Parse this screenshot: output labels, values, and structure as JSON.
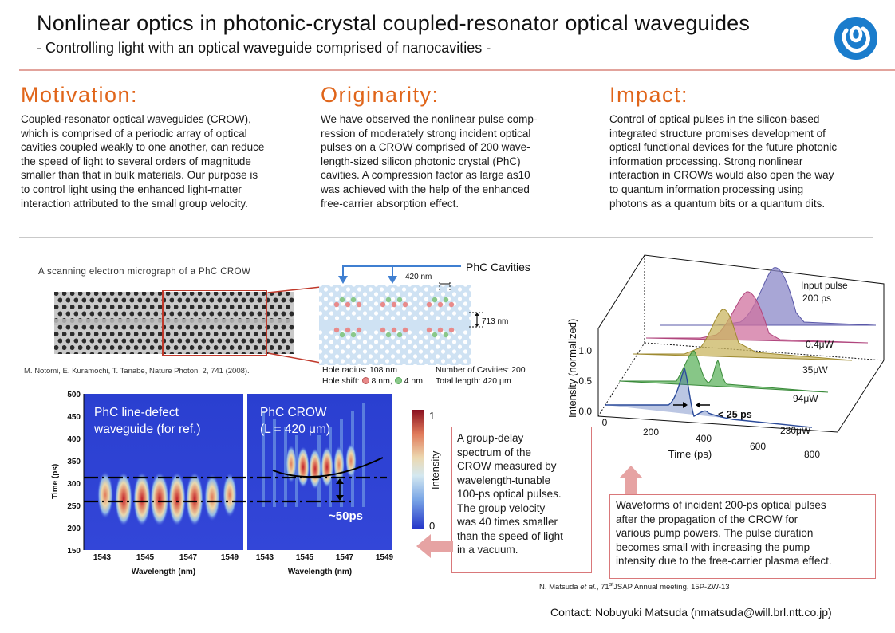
{
  "header": {
    "title": "Nonlinear optics in photonic-crystal coupled-resonator optical waveguides",
    "subtitle": "- Controlling light with an optical waveguide comprised of nanocavities -"
  },
  "motivation": {
    "heading": "Motivation:",
    "lines": [
      "Coupled-resonator optical waveguides (CROW),",
      "which is comprised of a periodic array of optical",
      "cavities coupled weakly to one another, can reduce",
      "the speed of light to several orders of magnitude",
      "smaller than that in bulk materials. Our purpose is",
      "to control light using the enhanced light-matter",
      "interaction attributed to the small group velocity."
    ]
  },
  "originality": {
    "heading": "Originarity:",
    "lines": [
      "We have observed the nonlinear pulse comp-",
      "ression of moderately strong incident optical",
      "pulses on a CROW comprised of 200 wave-",
      "length-sized silicon photonic crystal (PhC)",
      "cavities. A compression factor as large as10",
      "was achieved with the help of the enhanced",
      "free-carrier absorption effect."
    ]
  },
  "impact": {
    "heading": "Impact:",
    "lines": [
      "Control of optical pulses in the silicon-based",
      "integrated structure promises development of",
      "optical functional devices for the future photonic",
      "information processing. Strong nonlinear",
      "interaction in CROWs would also open the way",
      "to quantum information processing using",
      "photons as a quantum bits or a quantum dits."
    ]
  },
  "sem": {
    "caption": "A scanning electron micrograph of a PhC CROW",
    "reference": "M. Notomi, E. Kuramochi, T. Tanabe, Nature Photon. 2, 741 (2008)."
  },
  "schematic": {
    "cavities_label": "PhC Cavities",
    "period_label": "420 nm",
    "spacing_label": "713 nm",
    "hole_radius": "Hole radius:  108 nm",
    "hole_shift_prefix": "Hole shift:",
    "hole_shift_red": "8 nm,",
    "hole_shift_green": "4 nm",
    "num_cavities": "Number of Cavities:  200",
    "total_length": "Total length:  420 μm"
  },
  "spectra": {
    "ylabel": "Time (ps)",
    "xlabel": "Wavelength (nm)",
    "yticks": [
      "500",
      "450",
      "400",
      "350",
      "300",
      "250",
      "200",
      "150"
    ],
    "xticks": [
      "1543",
      "1545",
      "1547",
      "1549"
    ],
    "panel1_title_line1": "PhC line-defect",
    "panel1_title_line2": "waveguide (for ref.)",
    "panel2_title_line1": "PhC CROW",
    "panel2_title_line2": "(L = 420 μm)",
    "delay_label": "~50ps",
    "colorbar_label": "Intensity",
    "colorbar_max": "1",
    "colorbar_min": "0"
  },
  "group_delay_box": {
    "lines": [
      "A group-delay",
      "spectrum of the",
      "CROW measured by",
      "wavelength-tunable",
      "100-ps optical pulses.",
      "The group velocity",
      "was 40 times smaller",
      "than the speed of light",
      "in a vacuum."
    ]
  },
  "waveform": {
    "ylabel": "Intensity (normalized)",
    "xlabel": "Time (ps)",
    "zticks": [
      "1.0",
      "0.5",
      "0.0"
    ],
    "xticks": [
      "0",
      "200",
      "400",
      "600",
      "800"
    ],
    "input_label_line1": "Input pulse",
    "input_label_line2": "200 ps",
    "traces": [
      "0.4μW",
      "35μW",
      "94μW",
      "230μW"
    ],
    "width_label": "< 25 ps",
    "colors": {
      "input": "#8b88c8",
      "p04": "#d0719f",
      "p35": "#c9b560",
      "p94": "#5fb35f",
      "p230": "#3b5bb0"
    }
  },
  "waveform_box": {
    "lines": [
      "Waveforms of incident 200-ps optical pulses",
      "after the propagation of the CROW for",
      "various pump powers. The pulse duration",
      "becomes small with increasing the pump",
      "intensity due to the free-carrier plasma effect."
    ]
  },
  "footer": {
    "reference_prefix": "N. Matsuda ",
    "reference_etal": "et al.",
    "reference_mid": ", 71",
    "reference_sup": "st",
    "reference_suffix": "JSAP Annual meeting, 15P-ZW-13",
    "contact": "Contact: Nobuyuki Matsuda (nmatsuda@will.brl.ntt.co.jp)"
  }
}
